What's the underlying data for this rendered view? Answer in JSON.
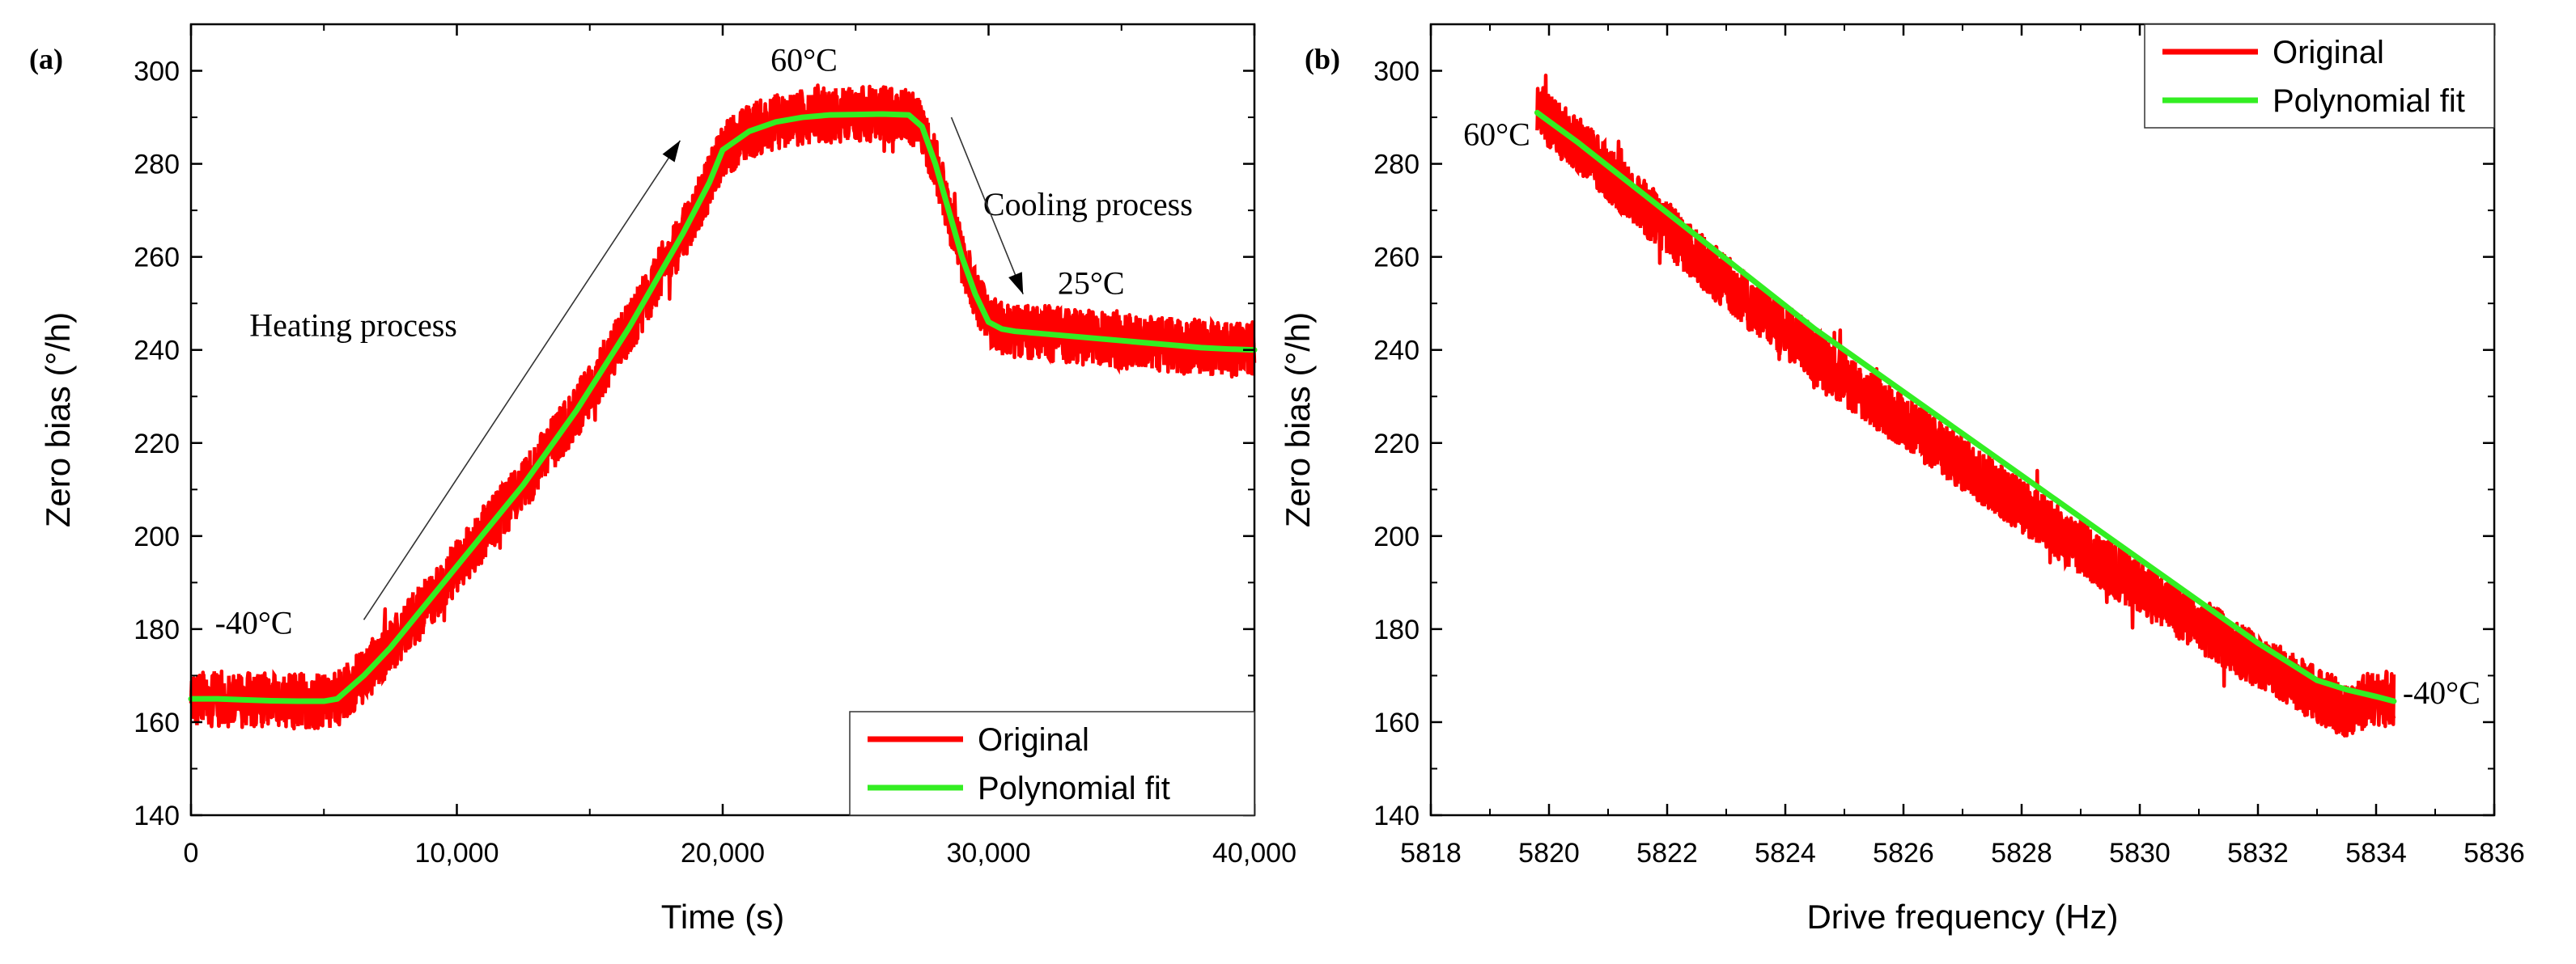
{
  "colors": {
    "original": "#ff0000",
    "fit": "#33ee22",
    "axis": "#000000",
    "background": "#ffffff"
  },
  "chart_data": [
    {
      "panel_label": "(a)",
      "type": "line",
      "xlabel": "Time (s)",
      "ylabel": "Zero bias (°/h)",
      "xlim": [
        0,
        40000
      ],
      "ylim": [
        140,
        310
      ],
      "xticks": [
        0,
        10000,
        20000,
        30000,
        40000
      ],
      "xtick_labels": [
        "0",
        "10,000",
        "20,000",
        "30,000",
        "40,000"
      ],
      "yticks": [
        140,
        160,
        180,
        200,
        220,
        240,
        260,
        280,
        300
      ],
      "ytick_labels": [
        "140",
        "160",
        "180",
        "200",
        "220",
        "240",
        "260",
        "280",
        "300"
      ],
      "legend": {
        "position": "bottom-right",
        "entries": [
          "Original",
          "Polynomial fit"
        ]
      },
      "series": [
        {
          "name": "Original",
          "noise_band": 6,
          "x": [
            0,
            1000,
            2000,
            3000,
            4000,
            5000,
            5500,
            6500,
            7500,
            8500,
            9500,
            10500,
            11500,
            12500,
            13500,
            14500,
            15500,
            16500,
            17500,
            18500,
            19500,
            20000,
            21000,
            22000,
            23000,
            24000,
            25000,
            26000,
            27000,
            27500,
            28000,
            28500,
            29000,
            29500,
            30000,
            30500,
            31000,
            32000,
            33000,
            34000,
            35000,
            36000,
            37000,
            38000,
            39000,
            40000
          ],
          "y": [
            165,
            165,
            164.8,
            164.6,
            164.5,
            164.5,
            165,
            170,
            176,
            183,
            190,
            197,
            204,
            211,
            219,
            227,
            236,
            245,
            255,
            265,
            276,
            283,
            287,
            289,
            290,
            290.5,
            290.6,
            290.7,
            290.5,
            288,
            280,
            270,
            260,
            252,
            246,
            244.5,
            244,
            243.5,
            243,
            242.5,
            242,
            241.5,
            241,
            240.5,
            240.2,
            240
          ]
        },
        {
          "name": "Polynomial fit",
          "x": [
            0,
            1000,
            2000,
            3000,
            4000,
            5000,
            5500,
            6500,
            7500,
            8500,
            9500,
            10500,
            11500,
            12500,
            13500,
            14500,
            15500,
            16500,
            17500,
            18500,
            19500,
            20000,
            21000,
            22000,
            23000,
            24000,
            25000,
            26000,
            27000,
            27500,
            28000,
            28500,
            29000,
            29500,
            30000,
            30500,
            31000,
            32000,
            33000,
            34000,
            35000,
            36000,
            37000,
            38000,
            39000,
            40000
          ],
          "y": [
            165,
            165,
            164.8,
            164.6,
            164.5,
            164.5,
            165,
            170,
            176,
            183,
            190,
            197,
            204,
            211,
            219,
            227,
            236,
            245,
            255,
            265,
            276,
            283,
            287,
            289,
            290,
            290.5,
            290.6,
            290.7,
            290.5,
            288,
            280,
            270,
            260,
            252,
            246,
            244.5,
            244,
            243.5,
            243,
            242.5,
            242,
            241.5,
            241,
            240.5,
            240.2,
            240
          ]
        }
      ],
      "annotations": [
        {
          "text": "-40°C",
          "x": 900,
          "y": 179
        },
        {
          "text": "60°C",
          "x": 21800,
          "y": 300
        },
        {
          "text": "Cooling process",
          "x": 29800,
          "y": 269
        },
        {
          "text": "25°C",
          "x": 32600,
          "y": 252
        },
        {
          "text": "Heating process",
          "x": 2200,
          "y": 243
        }
      ],
      "arrows": [
        {
          "from": [
            6500,
            182
          ],
          "to": [
            18400,
            285
          ]
        },
        {
          "from": [
            28600,
            290
          ],
          "to": [
            31300,
            252
          ]
        }
      ]
    },
    {
      "panel_label": "(b)",
      "type": "line",
      "xlabel": "Drive frequency (Hz)",
      "ylabel": "Zero bias (°/h)",
      "xlim": [
        5818,
        5836
      ],
      "ylim": [
        140,
        310
      ],
      "xticks": [
        5818,
        5820,
        5822,
        5824,
        5826,
        5828,
        5830,
        5832,
        5834,
        5836
      ],
      "xtick_labels": [
        "5818",
        "5820",
        "5822",
        "5824",
        "5826",
        "5828",
        "5830",
        "5832",
        "5834",
        "5836"
      ],
      "yticks": [
        140,
        160,
        180,
        200,
        220,
        240,
        260,
        280,
        300
      ],
      "ytick_labels": [
        "140",
        "160",
        "180",
        "200",
        "220",
        "240",
        "260",
        "280",
        "300"
      ],
      "legend": {
        "position": "top-right",
        "entries": [
          "Original",
          "Polynomial fit"
        ]
      },
      "series": [
        {
          "name": "Original",
          "noise_band": 6,
          "x": [
            5819.8,
            5820.5,
            5821,
            5821.5,
            5822,
            5822.5,
            5823,
            5823.5,
            5824,
            5824.5,
            5825,
            5825.5,
            5826,
            5826.5,
            5827,
            5827.5,
            5828,
            5828.5,
            5829,
            5829.5,
            5830,
            5830.5,
            5831,
            5831.5,
            5832,
            5832.5,
            5833,
            5833.5,
            5834,
            5834.3
          ],
          "y": [
            291,
            284,
            278,
            272,
            266,
            260,
            254.5,
            249,
            244,
            239,
            234,
            229,
            224.5,
            220,
            215.5,
            211,
            206.5,
            202,
            197.5,
            193,
            189,
            185,
            181,
            177,
            173,
            169.5,
            166,
            162.5,
            165.5,
            164.5
          ]
        },
        {
          "name": "Polynomial fit",
          "x": [
            5819.8,
            5820.5,
            5821,
            5821.5,
            5822,
            5822.5,
            5823,
            5823.5,
            5824,
            5824.5,
            5825,
            5825.5,
            5826,
            5826.5,
            5827,
            5827.5,
            5828,
            5828.5,
            5829,
            5829.5,
            5830,
            5830.5,
            5831,
            5831.5,
            5832,
            5832.5,
            5833,
            5833.5,
            5834,
            5834.3
          ],
          "y": [
            291,
            284.5,
            279.5,
            274.5,
            269.5,
            264.5,
            259.5,
            254.5,
            249.5,
            244.5,
            240,
            235.5,
            231,
            226.5,
            222,
            217.5,
            213,
            208.5,
            204,
            199.5,
            195,
            190.5,
            186,
            181.5,
            177,
            173,
            169,
            167,
            165.5,
            164.5
          ]
        }
      ],
      "annotations": [
        {
          "text": "60°C",
          "x": 5818.55,
          "y": 284
        },
        {
          "text": "-40°C",
          "x": 5834.45,
          "y": 164
        }
      ],
      "arrows": []
    }
  ]
}
